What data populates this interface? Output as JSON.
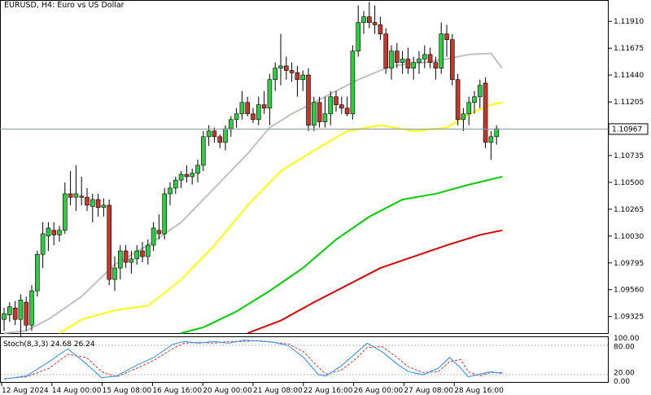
{
  "chart_data": {
    "type": "candlestick",
    "title": "EURUSD, H4:  Euro vs US Dollar",
    "price_axis": {
      "min": 1.0918,
      "max": 1.1209,
      "ticks": [
        "1.11910",
        "1.11675",
        "1.11440",
        "1.11205",
        "1.10735",
        "1.10500",
        "1.10265",
        "1.10030",
        "1.09795",
        "1.09560",
        "1.09325"
      ],
      "current_price": "1.10967"
    },
    "time_axis": [
      "12 Aug 2024",
      "14 Aug 00:00",
      "15 Aug 08:00",
      "16 Aug 16:00",
      "20 Aug 00:00",
      "21 Aug 08:00",
      "22 Aug 16:00",
      "26 Aug 00:00",
      "27 Aug 08:00",
      "28 Aug 16:00"
    ],
    "candles": [
      [
        1.093,
        1.094,
        1.092,
        1.0935
      ],
      [
        1.0934,
        1.0945,
        1.0928,
        1.0941
      ],
      [
        1.094,
        1.0946,
        1.0925,
        1.093
      ],
      [
        1.093,
        1.0952,
        1.0912,
        1.0947
      ],
      [
        1.0945,
        1.095,
        1.092,
        1.0925
      ],
      [
        1.0925,
        1.096,
        1.092,
        1.0955
      ],
      [
        1.0955,
        1.099,
        1.095,
        1.0987
      ],
      [
        1.0987,
        1.1015,
        1.0975,
        1.1005
      ],
      [
        1.1003,
        1.1015,
        1.099,
        1.101
      ],
      [
        1.1008,
        1.1015,
        1.0995,
        1.1004
      ],
      [
        1.1004,
        1.1012,
        1.0998,
        1.1008
      ],
      [
        1.1008,
        1.105,
        1.1005,
        1.104
      ],
      [
        1.104,
        1.106,
        1.103,
        1.1037
      ],
      [
        1.1037,
        1.1065,
        1.1025,
        1.104
      ],
      [
        1.1038,
        1.1055,
        1.103,
        1.1037
      ],
      [
        1.1037,
        1.1045,
        1.1025,
        1.103
      ],
      [
        1.1029,
        1.104,
        1.1015,
        1.1035
      ],
      [
        1.1035,
        1.104,
        1.102,
        1.1028
      ],
      [
        1.1028,
        1.1036,
        1.102,
        1.103
      ],
      [
        1.103,
        1.1035,
        1.096,
        1.0965
      ],
      [
        1.0965,
        1.0985,
        1.0955,
        1.0975
      ],
      [
        1.0975,
        1.0995,
        1.0965,
        1.099
      ],
      [
        1.099,
        1.0995,
        1.0975,
        1.098
      ],
      [
        1.098,
        1.099,
        1.097,
        1.0983
      ],
      [
        1.0983,
        1.0995,
        1.0978,
        1.099
      ],
      [
        1.099,
        1.0998,
        1.098,
        1.0985
      ],
      [
        1.0985,
        1.1,
        1.0978,
        1.0995
      ],
      [
        1.0995,
        1.1015,
        1.099,
        1.101
      ],
      [
        1.1008,
        1.1022,
        1.1,
        1.1005
      ],
      [
        1.1005,
        1.1045,
        1.1,
        1.104
      ],
      [
        1.104,
        1.105,
        1.103,
        1.1045
      ],
      [
        1.1045,
        1.1055,
        1.104,
        1.1052
      ],
      [
        1.1052,
        1.106,
        1.1045,
        1.1057
      ],
      [
        1.1057,
        1.1065,
        1.105,
        1.1055
      ],
      [
        1.1055,
        1.1062,
        1.1048,
        1.1058
      ],
      [
        1.1058,
        1.107,
        1.105,
        1.1065
      ],
      [
        1.1065,
        1.1095,
        1.106,
        1.109
      ],
      [
        1.109,
        1.11,
        1.1082,
        1.1095
      ],
      [
        1.1095,
        1.1098,
        1.1085,
        1.109
      ],
      [
        1.109,
        1.1092,
        1.108,
        1.1085
      ],
      [
        1.1085,
        1.11,
        1.1078,
        1.1097
      ],
      [
        1.1097,
        1.1108,
        1.109,
        1.1105
      ],
      [
        1.1105,
        1.1115,
        1.1098,
        1.111
      ],
      [
        1.111,
        1.113,
        1.1105,
        1.112
      ],
      [
        1.112,
        1.1125,
        1.1108,
        1.111
      ],
      [
        1.111,
        1.1115,
        1.1102,
        1.1105
      ],
      [
        1.1105,
        1.1125,
        1.11,
        1.1118
      ],
      [
        1.1118,
        1.113,
        1.111,
        1.1115
      ],
      [
        1.1115,
        1.1145,
        1.11,
        1.114
      ],
      [
        1.114,
        1.1155,
        1.113,
        1.115
      ],
      [
        1.115,
        1.118,
        1.1135,
        1.1152
      ],
      [
        1.1152,
        1.116,
        1.114,
        1.1148
      ],
      [
        1.1148,
        1.1155,
        1.1138,
        1.1146
      ],
      [
        1.1146,
        1.1152,
        1.1125,
        1.114
      ],
      [
        1.114,
        1.1148,
        1.113,
        1.1144
      ],
      [
        1.1144,
        1.115,
        1.1095,
        1.11
      ],
      [
        1.11,
        1.1125,
        1.1095,
        1.112
      ],
      [
        1.112,
        1.1125,
        1.1098,
        1.1103
      ],
      [
        1.1103,
        1.1125,
        1.1098,
        1.111
      ],
      [
        1.111,
        1.113,
        1.11,
        1.1125
      ],
      [
        1.1125,
        1.113,
        1.1112,
        1.1118
      ],
      [
        1.1118,
        1.1125,
        1.111,
        1.1115
      ],
      [
        1.1115,
        1.1125,
        1.1108,
        1.111
      ],
      [
        1.111,
        1.117,
        1.1105,
        1.1165
      ],
      [
        1.1165,
        1.1205,
        1.116,
        1.119
      ],
      [
        1.119,
        1.12,
        1.118,
        1.1195
      ],
      [
        1.1195,
        1.1208,
        1.1185,
        1.119
      ],
      [
        1.119,
        1.1205,
        1.118,
        1.1188
      ],
      [
        1.1188,
        1.1195,
        1.1175,
        1.118
      ],
      [
        1.118,
        1.1185,
        1.1145,
        1.115
      ],
      [
        1.115,
        1.117,
        1.114,
        1.1165
      ],
      [
        1.1165,
        1.1172,
        1.115,
        1.1155
      ],
      [
        1.1155,
        1.1165,
        1.1145,
        1.1158
      ],
      [
        1.1158,
        1.1168,
        1.1145,
        1.115
      ],
      [
        1.115,
        1.116,
        1.114,
        1.1155
      ],
      [
        1.1155,
        1.1165,
        1.1145,
        1.1158
      ],
      [
        1.1158,
        1.117,
        1.115,
        1.1162
      ],
      [
        1.1162,
        1.1168,
        1.115,
        1.1155
      ],
      [
        1.1155,
        1.116,
        1.114,
        1.115
      ],
      [
        1.115,
        1.119,
        1.1145,
        1.118
      ],
      [
        1.118,
        1.1188,
        1.116,
        1.1175
      ],
      [
        1.1175,
        1.118,
        1.1135,
        1.114
      ],
      [
        1.114,
        1.1145,
        1.11,
        1.1105
      ],
      [
        1.1105,
        1.1115,
        1.1095,
        1.111
      ],
      [
        1.111,
        1.1125,
        1.11,
        1.112
      ],
      [
        1.112,
        1.113,
        1.111,
        1.1125
      ],
      [
        1.1125,
        1.114,
        1.1115,
        1.1135
      ],
      [
        1.1137,
        1.1142,
        1.108,
        1.1085
      ],
      [
        1.1085,
        1.1095,
        1.107,
        1.109
      ],
      [
        1.109,
        1.11,
        1.1083,
        1.1097
      ]
    ],
    "moving_averages": [
      {
        "color": "#c0c0c0",
        "values": [
          [
            0,
            1.0918
          ],
          [
            4,
            1.092
          ],
          [
            8,
            1.093
          ],
          [
            14,
            1.095
          ],
          [
            20,
            1.0978
          ],
          [
            26,
            1.0995
          ],
          [
            32,
            1.1015
          ],
          [
            38,
            1.1045
          ],
          [
            44,
            1.1075
          ],
          [
            48,
            1.1098
          ],
          [
            52,
            1.111
          ],
          [
            58,
            1.1125
          ],
          [
            64,
            1.114
          ],
          [
            70,
            1.1152
          ],
          [
            76,
            1.1155
          ],
          [
            80,
            1.1158
          ],
          [
            84,
            1.1162
          ],
          [
            88,
            1.1163
          ],
          [
            90,
            1.115
          ]
        ]
      },
      {
        "color": "#ffff00",
        "values": [
          [
            10,
            1.0918
          ],
          [
            14,
            1.093
          ],
          [
            20,
            1.0938
          ],
          [
            26,
            1.0942
          ],
          [
            32,
            1.0965
          ],
          [
            38,
            1.0995
          ],
          [
            44,
            1.103
          ],
          [
            50,
            1.106
          ],
          [
            56,
            1.1078
          ],
          [
            62,
            1.1095
          ],
          [
            68,
            1.11
          ],
          [
            74,
            1.1095
          ],
          [
            80,
            1.1098
          ],
          [
            84,
            1.111
          ],
          [
            88,
            1.1118
          ],
          [
            90,
            1.112
          ]
        ]
      },
      {
        "color": "#00d000",
        "values": [
          [
            32,
            1.0918
          ],
          [
            36,
            1.0923
          ],
          [
            42,
            1.0937
          ],
          [
            48,
            1.0955
          ],
          [
            54,
            1.0975
          ],
          [
            60,
            1.1
          ],
          [
            66,
            1.102
          ],
          [
            72,
            1.1035
          ],
          [
            78,
            1.104
          ],
          [
            84,
            1.1048
          ],
          [
            90,
            1.1055
          ]
        ]
      },
      {
        "color": "#e00000",
        "values": [
          [
            44,
            1.0918
          ],
          [
            50,
            1.0929
          ],
          [
            56,
            1.0945
          ],
          [
            62,
            1.096
          ],
          [
            68,
            1.0975
          ],
          [
            74,
            1.0985
          ],
          [
            80,
            1.0995
          ],
          [
            86,
            1.1004
          ],
          [
            90,
            1.1008
          ]
        ]
      }
    ],
    "indicator": {
      "label": "Stoch(8,3,3) 24.68 26.24",
      "ticks": [
        "100.00",
        "80.00",
        "20.00",
        "0.00"
      ],
      "main_line": [
        [
          0,
          5
        ],
        [
          6,
          12
        ],
        [
          12,
          45
        ],
        [
          17,
          75
        ],
        [
          22,
          40
        ],
        [
          26,
          8
        ],
        [
          30,
          12
        ],
        [
          35,
          35
        ],
        [
          40,
          55
        ],
        [
          45,
          85
        ],
        [
          48,
          92
        ],
        [
          52,
          88
        ],
        [
          56,
          92
        ],
        [
          60,
          88
        ],
        [
          64,
          95
        ],
        [
          68,
          93
        ],
        [
          72,
          90
        ],
        [
          76,
          82
        ],
        [
          80,
          55
        ],
        [
          84,
          15
        ],
        [
          86,
          12
        ],
        [
          90,
          35
        ],
        [
          94,
          65
        ],
        [
          97,
          88
        ],
        [
          101,
          68
        ],
        [
          105,
          40
        ],
        [
          108,
          22
        ],
        [
          112,
          15
        ],
        [
          116,
          30
        ],
        [
          119,
          55
        ],
        [
          122,
          30
        ],
        [
          124,
          10
        ],
        [
          127,
          16
        ],
        [
          130,
          22
        ],
        [
          133,
          18
        ]
      ],
      "signal_line": [
        [
          0,
          6
        ],
        [
          6,
          10
        ],
        [
          12,
          30
        ],
        [
          17,
          62
        ],
        [
          22,
          55
        ],
        [
          26,
          22
        ],
        [
          30,
          10
        ],
        [
          35,
          28
        ],
        [
          40,
          48
        ],
        [
          45,
          75
        ],
        [
          48,
          88
        ],
        [
          52,
          90
        ],
        [
          56,
          88
        ],
        [
          60,
          92
        ],
        [
          64,
          92
        ],
        [
          68,
          94
        ],
        [
          72,
          90
        ],
        [
          76,
          86
        ],
        [
          80,
          68
        ],
        [
          84,
          32
        ],
        [
          86,
          16
        ],
        [
          90,
          25
        ],
        [
          94,
          52
        ],
        [
          97,
          78
        ],
        [
          101,
          80
        ],
        [
          105,
          55
        ],
        [
          108,
          33
        ],
        [
          112,
          20
        ],
        [
          116,
          22
        ],
        [
          119,
          45
        ],
        [
          122,
          50
        ],
        [
          124,
          22
        ],
        [
          127,
          12
        ],
        [
          130,
          20
        ],
        [
          133,
          20
        ]
      ]
    }
  }
}
